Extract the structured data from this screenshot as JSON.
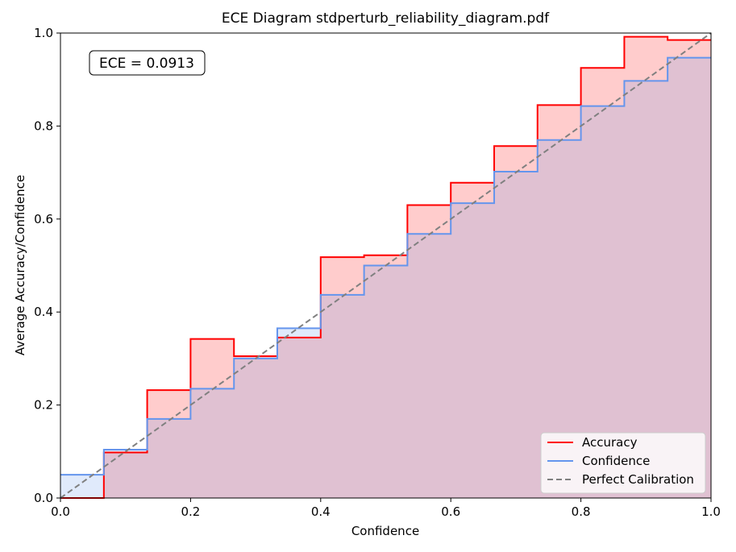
{
  "chart_data": {
    "type": "line",
    "title": "ECE Diagram stdperturb_reliability_diagram.pdf",
    "xlabel": "Confidence",
    "ylabel": "Average Accuracy/Confidence",
    "xlim": [
      0.0,
      1.0
    ],
    "ylim": [
      0.0,
      1.0
    ],
    "xticks": [
      "0.0",
      "0.2",
      "0.4",
      "0.6",
      "0.8",
      "1.0"
    ],
    "yticks": [
      "0.0",
      "0.2",
      "0.4",
      "0.6",
      "0.8",
      "1.0"
    ],
    "bin_edges": [
      0.0,
      0.0667,
      0.1333,
      0.2,
      0.2667,
      0.3333,
      0.4,
      0.4667,
      0.5333,
      0.6,
      0.6667,
      0.7333,
      0.8,
      0.8667,
      0.9333,
      1.0
    ],
    "series": [
      {
        "name": "Accuracy",
        "color": "#ff0000",
        "style": "steps",
        "values": [
          0.0,
          0.098,
          0.232,
          0.342,
          0.305,
          0.345,
          0.518,
          0.522,
          0.63,
          0.678,
          0.757,
          0.845,
          0.925,
          0.992,
          0.985
        ]
      },
      {
        "name": "Confidence",
        "color": "#6495ed",
        "style": "steps",
        "values": [
          0.05,
          0.104,
          0.17,
          0.235,
          0.3,
          0.365,
          0.437,
          0.5,
          0.568,
          0.634,
          0.702,
          0.77,
          0.843,
          0.897,
          0.947
        ]
      },
      {
        "name": "Perfect Calibration",
        "color": "#808080",
        "style": "dashed",
        "x": [
          0.0,
          1.0
        ],
        "y": [
          0.0,
          1.0
        ]
      }
    ],
    "annotation": "ECE = 0.0913",
    "legend_position": "bottom-right",
    "grid": false
  }
}
